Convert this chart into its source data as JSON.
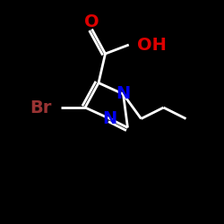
{
  "background_color": "#000000",
  "atom_colors": {
    "N": "#0000ee",
    "O": "#dd0000",
    "Br": "#993333"
  },
  "bond_color": "#ffffff",
  "bond_width": 2.0,
  "figsize": [
    2.5,
    2.5
  ],
  "dpi": 100,
  "label_fontsize": 14,
  "label_fontsize_oh": 14
}
